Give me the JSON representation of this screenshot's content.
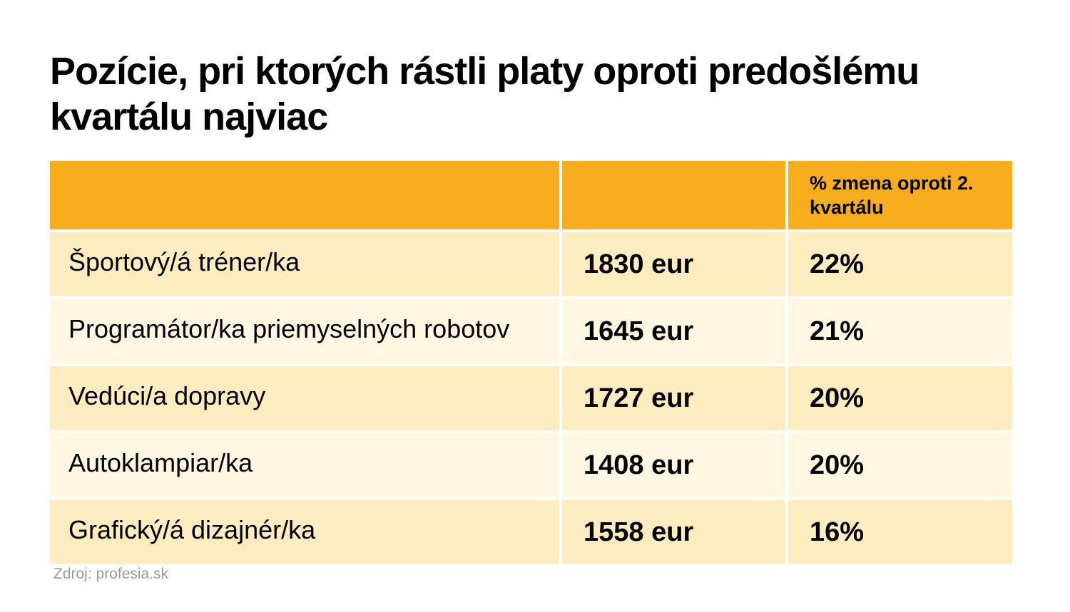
{
  "title": "Pozície, pri ktorých rástli platy oproti predošlému kvartálu najviac",
  "table": {
    "headers": [
      "",
      "",
      "% zmena oproti 2. kvartálu"
    ],
    "rows": [
      {
        "position": "Športový/á tréner/ka",
        "salary": "1830 eur",
        "change": "22%"
      },
      {
        "position": "Programátor/ka priemyselných robotov",
        "salary": "1645 eur",
        "change": "21%"
      },
      {
        "position": "Vedúci/a dopravy",
        "salary": "1727 eur",
        "change": "20%"
      },
      {
        "position": "Autoklampiar/ka",
        "salary": "1408 eur",
        "change": "20%"
      },
      {
        "position": "Grafický/á dizajnér/ka",
        "salary": "1558 eur",
        "change": "16%"
      }
    ]
  },
  "source": "Zdroj: profesia.sk",
  "colors": {
    "header_bg": "#f8ad1e",
    "row_odd_bg": "#fdecc0",
    "row_even_bg": "#fff7e1",
    "source_text": "#999999"
  }
}
